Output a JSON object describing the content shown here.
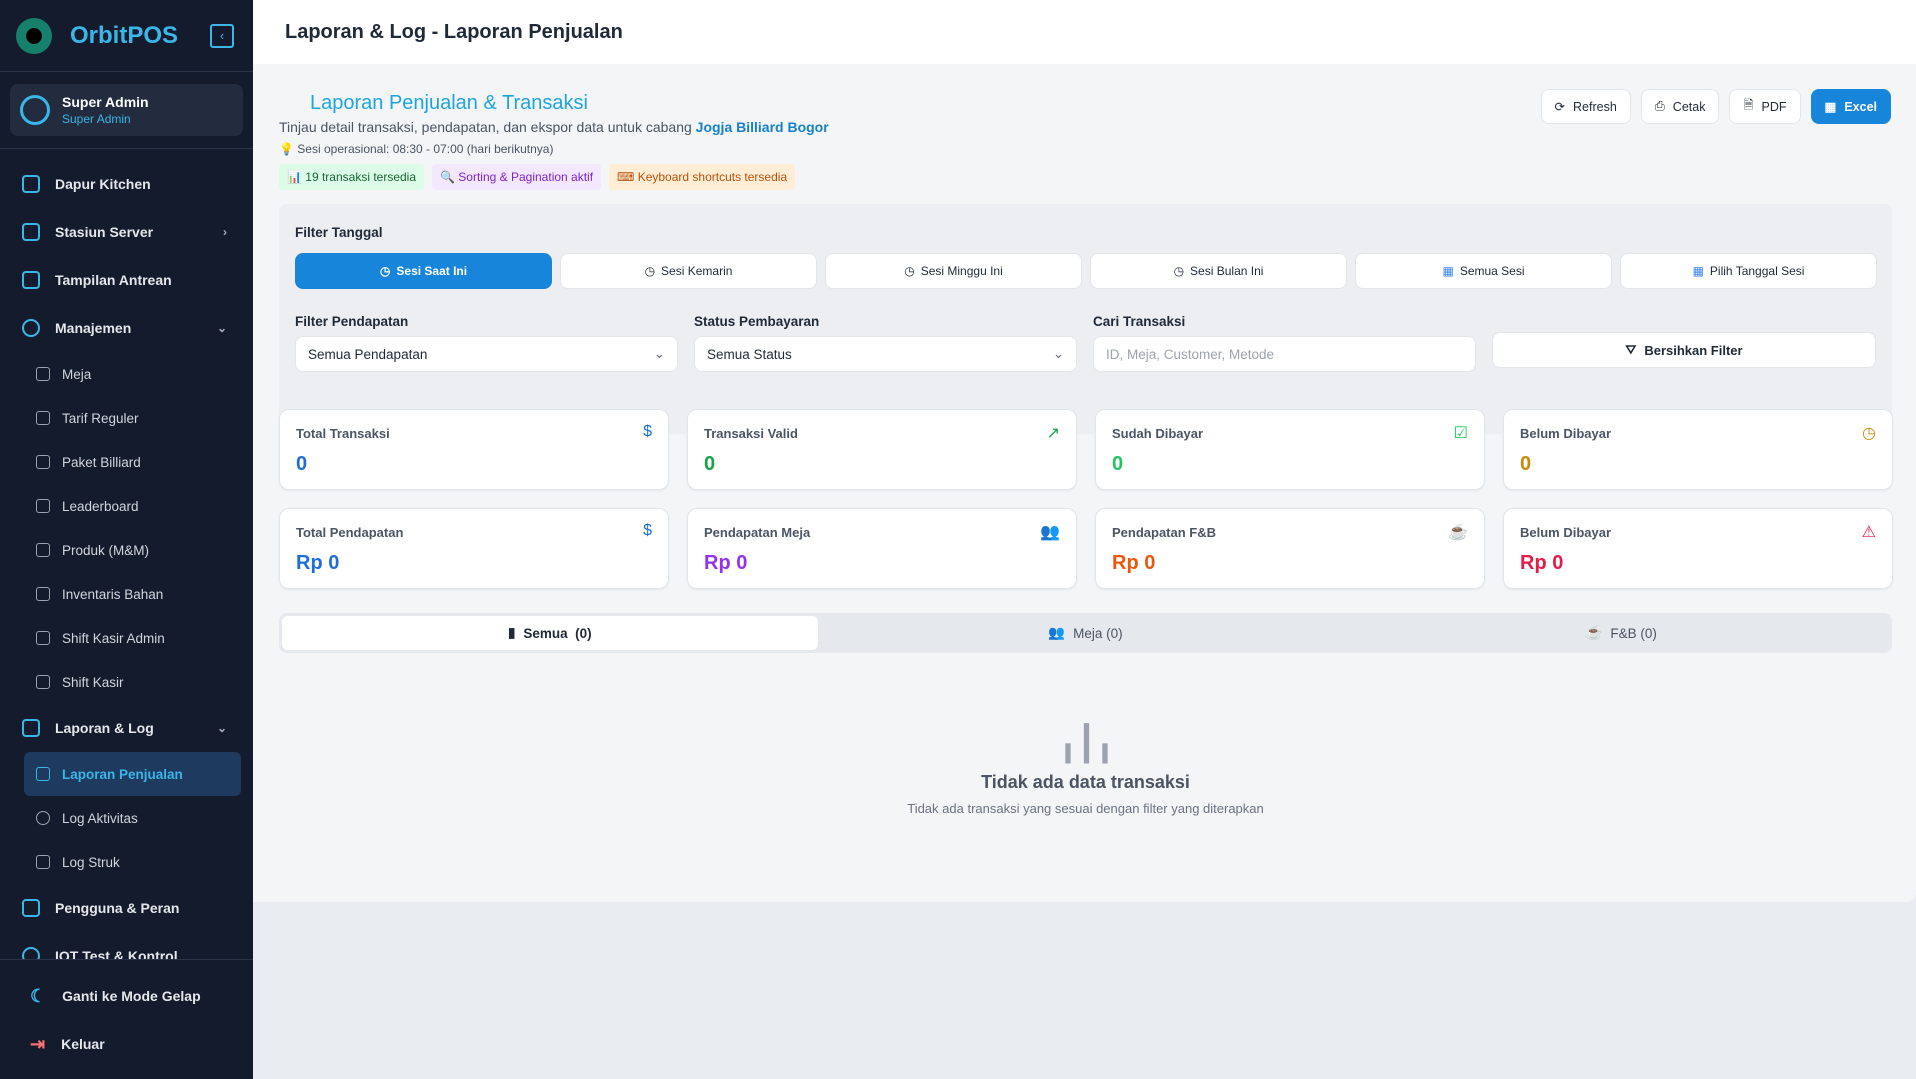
{
  "app": {
    "name": "OrbitPOS",
    "accent": "#3ab6e8"
  },
  "user": {
    "name": "Super Admin",
    "role": "Super Admin"
  },
  "sidebar": {
    "items": [
      {
        "label": "Dapur Kitchen"
      },
      {
        "label": "Stasiun Server"
      },
      {
        "label": "Tampilan Antrean"
      },
      {
        "label": "Manajemen"
      },
      {
        "label": "Laporan & Log"
      },
      {
        "label": "Pengguna & Peran"
      },
      {
        "label": "IOT Test & Kontrol"
      }
    ],
    "manajemen": [
      "Meja",
      "Tarif Reguler",
      "Paket Billiard",
      "Leaderboard",
      "Produk (M&M)",
      "Inventaris Bahan",
      "Shift Kasir Admin",
      "Shift Kasir"
    ],
    "laporan": [
      "Laporan Penjualan",
      "Log Aktivitas",
      "Log Struk"
    ],
    "dark_mode": "Ganti ke Mode Gelap",
    "logout": "Keluar"
  },
  "header": {
    "title": "Laporan & Log - Laporan Penjualan"
  },
  "page": {
    "title": "Laporan Penjualan & Transaksi",
    "description": "Tinjau detail transaksi, pendapatan, dan ekspor data untuk cabang ",
    "branch": "Jogja Billiard Bogor",
    "session": "Sesi operasional: 08:30 - 07:00 (hari berikutnya)",
    "badges": [
      "19 transaksi tersedia",
      "Sorting & Pagination aktif",
      "Keyboard shortcuts tersedia"
    ],
    "actions": {
      "refresh": "Refresh",
      "print": "Cetak",
      "pdf": "PDF",
      "excel": "Excel"
    }
  },
  "filters": {
    "date_label": "Filter Tanggal",
    "date_options": [
      "Sesi Saat Ini",
      "Sesi Kemarin",
      "Sesi Minggu Ini",
      "Sesi Bulan Ini",
      "Semua Sesi",
      "Pilih Tanggal Sesi"
    ],
    "income_label": "Filter Pendapatan",
    "income_value": "Semua Pendapatan",
    "status_label": "Status Pembayaran",
    "status_value": "Semua Status",
    "search_label": "Cari Transaksi",
    "search_placeholder": "ID, Meja, Customer, Metode",
    "clear": "Bersihkan Filter"
  },
  "stats": [
    {
      "title": "Total Transaksi",
      "value": "0",
      "color": "#1d6fd6"
    },
    {
      "title": "Transaksi Valid",
      "value": "0",
      "color": "#16a34a"
    },
    {
      "title": "Sudah Dibayar",
      "value": "0",
      "color": "#22c55e"
    },
    {
      "title": "Belum Dibayar",
      "value": "0",
      "color": "#ca8a04"
    },
    {
      "title": "Total Pendapatan",
      "value": "Rp 0",
      "color": "#1d6fd6"
    },
    {
      "title": "Pendapatan Meja",
      "value": "Rp 0",
      "color": "#9333ea"
    },
    {
      "title": "Pendapatan F&B",
      "value": "Rp 0",
      "color": "#ea580c"
    },
    {
      "title": "Belum Dibayar",
      "value": "Rp 0",
      "color": "#e11d48"
    }
  ],
  "tabs": [
    "Semua  (0)",
    "Meja (0)",
    "F&B (0)"
  ],
  "empty": {
    "title": "Tidak ada data transaksi",
    "subtitle": "Tidak ada transaksi yang sesuai dengan filter yang diterapkan"
  }
}
